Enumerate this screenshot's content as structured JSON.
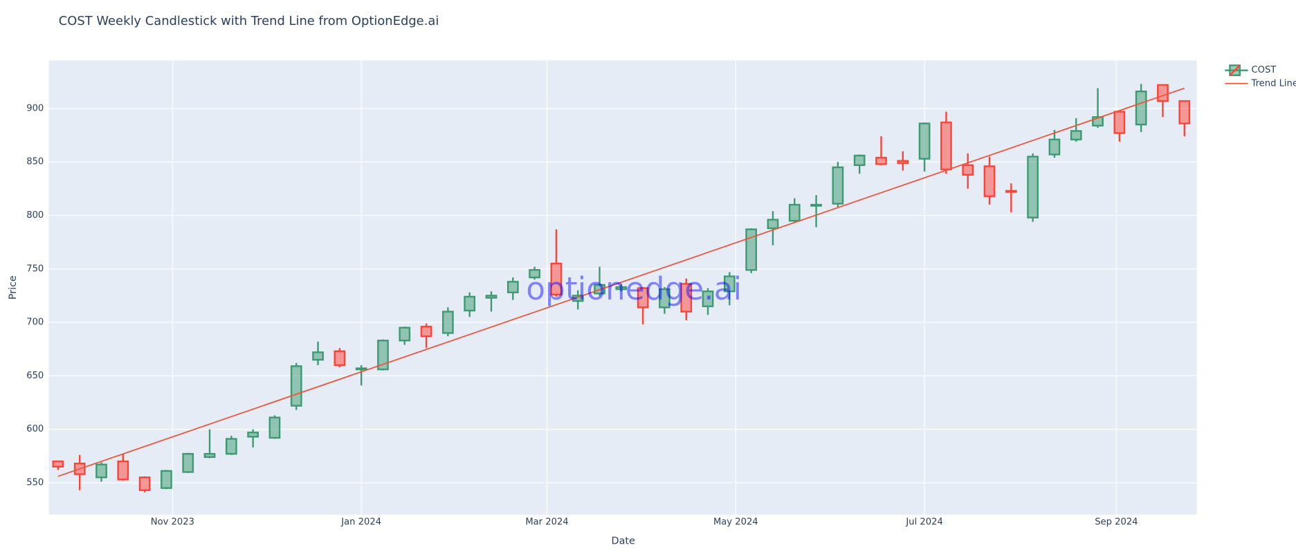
{
  "chart_data": {
    "type": "candlestick",
    "title": "COST Weekly Candlestick with Trend Line from OptionEdge.ai",
    "x_label": "Date",
    "y_label": "Price",
    "watermark": "optionedge.ai",
    "x": [
      "2023-09-25",
      "2023-10-02",
      "2023-10-09",
      "2023-10-16",
      "2023-10-23",
      "2023-10-30",
      "2023-11-06",
      "2023-11-13",
      "2023-11-20",
      "2023-11-27",
      "2023-12-04",
      "2023-12-11",
      "2023-12-18",
      "2023-12-25",
      "2024-01-01",
      "2024-01-08",
      "2024-01-15",
      "2024-01-22",
      "2024-01-29",
      "2024-02-05",
      "2024-02-12",
      "2024-02-19",
      "2024-02-26",
      "2024-03-04",
      "2024-03-11",
      "2024-03-18",
      "2024-03-25",
      "2024-04-01",
      "2024-04-08",
      "2024-04-15",
      "2024-04-22",
      "2024-04-29",
      "2024-05-06",
      "2024-05-13",
      "2024-05-20",
      "2024-05-27",
      "2024-06-03",
      "2024-06-10",
      "2024-06-17",
      "2024-06-24",
      "2024-07-01",
      "2024-07-08",
      "2024-07-15",
      "2024-07-22",
      "2024-07-29",
      "2024-08-05",
      "2024-08-12",
      "2024-08-19",
      "2024-08-26",
      "2024-09-02",
      "2024-09-09",
      "2024-09-16",
      "2024-09-23"
    ],
    "candles": {
      "name": "COST",
      "increasing_color": "#3d9970",
      "decreasing_color": "#ff4136",
      "open": [
        570,
        568,
        555,
        570,
        555,
        545,
        560,
        574,
        577,
        593,
        592,
        622,
        665,
        673,
        656,
        656,
        683,
        696,
        690,
        711,
        723,
        728,
        742,
        755,
        720,
        727,
        731,
        732,
        714,
        736,
        715,
        729,
        749,
        788,
        795,
        809,
        811,
        847,
        854,
        851,
        853,
        887,
        847,
        846,
        823,
        798,
        857,
        871,
        884,
        897,
        885,
        922,
        907
      ],
      "high": [
        570,
        576,
        569,
        577,
        556,
        562,
        578,
        600,
        594,
        600,
        613,
        662,
        682,
        676,
        660,
        684,
        696,
        699,
        714,
        728,
        729,
        742,
        752,
        787,
        730,
        752,
        736,
        733,
        733,
        741,
        732,
        747,
        788,
        804,
        816,
        819,
        850,
        857,
        874,
        860,
        887,
        897,
        858,
        855,
        830,
        858,
        880,
        891,
        919,
        898,
        923,
        922,
        907
      ],
      "low": [
        562,
        543,
        551,
        552,
        541,
        544,
        559,
        573,
        576,
        583,
        591,
        618,
        660,
        658,
        641,
        655,
        679,
        676,
        687,
        705,
        710,
        721,
        740,
        724,
        712,
        725,
        729,
        698,
        708,
        702,
        707,
        716,
        746,
        772,
        793,
        789,
        808,
        839,
        847,
        842,
        841,
        839,
        825,
        810,
        803,
        794,
        854,
        869,
        882,
        869,
        878,
        892,
        874
      ],
      "close": [
        565,
        558,
        567,
        553,
        543,
        561,
        577,
        577,
        591,
        597,
        611,
        659,
        672,
        660,
        657,
        683,
        695,
        687,
        710,
        724,
        725,
        738,
        749,
        726,
        725,
        735,
        733,
        714,
        731,
        710,
        729,
        743,
        787,
        796,
        810,
        810,
        845,
        856,
        848,
        849,
        886,
        843,
        838,
        818,
        822,
        855,
        871,
        879,
        892,
        877,
        916,
        907,
        886
      ]
    },
    "trend": {
      "name": "Trend Line",
      "color": "#ef553b",
      "x": [
        "2023-09-25",
        "2024-09-23"
      ],
      "values": [
        556,
        919
      ]
    },
    "xlim": [
      "2023-09-22",
      "2024-09-27"
    ],
    "xticks": [
      {
        "value": "2023-11-01",
        "label": "Nov 2023"
      },
      {
        "value": "2024-01-01",
        "label": "Jan 2024"
      },
      {
        "value": "2024-03-01",
        "label": "Mar 2024"
      },
      {
        "value": "2024-05-01",
        "label": "May 2024"
      },
      {
        "value": "2024-07-01",
        "label": "Jul 2024"
      },
      {
        "value": "2024-09-01",
        "label": "Sep 2024"
      }
    ],
    "ylim": [
      520,
      945
    ],
    "yticks": [
      550,
      600,
      650,
      700,
      750,
      800,
      850,
      900
    ],
    "grid": true,
    "legend": "top-right"
  }
}
